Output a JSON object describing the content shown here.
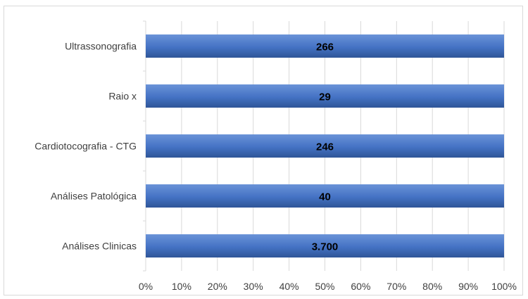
{
  "chart_data": {
    "type": "bar",
    "orientation": "horizontal",
    "stacking": "100% stacked",
    "title": "",
    "xlabel": "",
    "ylabel": "",
    "categories": [
      "Ultrassonografia",
      "Raio x",
      "Cardiotocografia - CTG",
      "Análises Patológica",
      "Análises Clinicas"
    ],
    "series": [
      {
        "values": [
          266,
          29,
          246,
          40,
          3700
        ],
        "data_labels": [
          "266",
          "29",
          "246",
          "40",
          "3.700"
        ],
        "share_of_total": [
          1,
          1,
          1,
          1,
          1
        ]
      }
    ],
    "xlim": [
      0,
      1
    ],
    "x_ticks": [
      "0%",
      "10%",
      "20%",
      "30%",
      "40%",
      "50%",
      "60%",
      "70%",
      "80%",
      "90%",
      "100%"
    ],
    "grid": "vertical gridlines",
    "legend": "none",
    "colors": {
      "bar": "#4472c4",
      "bar_light": "#6a93d8",
      "bar_dark": "#2f5597",
      "grid": "#d9d9d9",
      "text": "#404040"
    }
  }
}
